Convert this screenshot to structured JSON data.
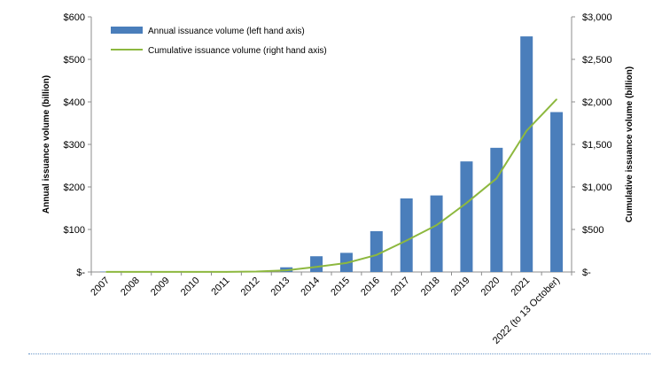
{
  "chart_data": {
    "type": "bar",
    "categories": [
      "2007",
      "2008",
      "2009",
      "2010",
      "2011",
      "2012",
      "2013",
      "2014",
      "2015",
      "2016",
      "2017",
      "2018",
      "2019",
      "2020",
      "2021",
      "2022 (to 13 October)"
    ],
    "series": [
      {
        "name": "Annual issuance volume (left hand axis)",
        "type": "bar",
        "axis": "left",
        "values": [
          1,
          0,
          0,
          0,
          0,
          0,
          11,
          37,
          45,
          96,
          173,
          180,
          260,
          292,
          554,
          376
        ]
      },
      {
        "name": "Cumulative issuance volume (right hand axis)",
        "type": "line",
        "axis": "right",
        "values": [
          1,
          1,
          1,
          1,
          1,
          5,
          20,
          60,
          105,
          200,
          370,
          550,
          810,
          1100,
          1660,
          2030
        ]
      }
    ],
    "ylabel_left": "Annual issuance volume (billion)",
    "ylabel_right": "Cumulative issuance volume (billion)",
    "ylim_left": [
      0,
      600
    ],
    "ylim_right": [
      0,
      3000
    ],
    "yticks_left": [
      "$-",
      "$100",
      "$200",
      "$300",
      "$400",
      "$500",
      "$600"
    ],
    "yticks_right": [
      "$-",
      "$500",
      "$1,000",
      "$1,500",
      "$2,000",
      "$2,500",
      "$3,000"
    ],
    "grid": false,
    "legend_position": "top-left",
    "colors": {
      "bar": "#4a7ebb",
      "line": "#8db83f",
      "axis": "#8c8c8c",
      "rule": "#6a97c8"
    }
  }
}
